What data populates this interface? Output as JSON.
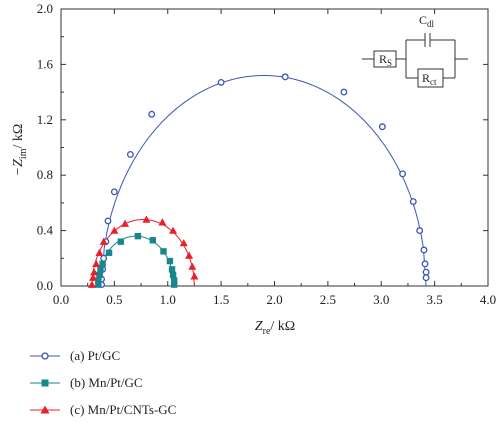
{
  "chart_data": {
    "type": "scatter",
    "x_axis": {
      "label_main": "Z",
      "label_sub": "re",
      "label_unit": "/ kΩ",
      "range": [
        0.0,
        4.0
      ],
      "ticks": [
        "0.0",
        "0.5",
        "1.0",
        "1.5",
        "2.0",
        "2.5",
        "3.0",
        "3.5",
        "4.0"
      ]
    },
    "y_axis": {
      "label_main": "−Z",
      "label_sub": "im",
      "label_unit": "/ kΩ",
      "range": [
        0.0,
        2.0
      ],
      "ticks": [
        "0.0",
        "0.4",
        "0.8",
        "1.2",
        "1.6",
        "2.0"
      ]
    },
    "grid": false,
    "legend_position": "bottom",
    "series": [
      {
        "name": "(a) Pt/GC",
        "color": "#3b55b5",
        "marker": "open-circle",
        "center": 1.9,
        "radius": 1.52,
        "points": [
          [
            0.38,
            0.01
          ],
          [
            0.38,
            0.05
          ],
          [
            0.39,
            0.12
          ],
          [
            0.4,
            0.2
          ],
          [
            0.42,
            0.32
          ],
          [
            0.44,
            0.47
          ],
          [
            0.5,
            0.68
          ],
          [
            0.65,
            0.95
          ],
          [
            0.85,
            1.24
          ],
          [
            1.5,
            1.47
          ],
          [
            2.1,
            1.51
          ],
          [
            2.65,
            1.4
          ],
          [
            3.01,
            1.15
          ],
          [
            3.2,
            0.81
          ],
          [
            3.3,
            0.61
          ],
          [
            3.36,
            0.4
          ],
          [
            3.4,
            0.26
          ],
          [
            3.41,
            0.16
          ],
          [
            3.42,
            0.1
          ],
          [
            3.42,
            0.06
          ]
        ]
      },
      {
        "name": "(b) Mn/Pt/GC",
        "color": "#17868f",
        "marker": "filled-square",
        "center": 0.7,
        "radius": 0.36,
        "points": [
          [
            0.35,
            0.01
          ],
          [
            0.35,
            0.04
          ],
          [
            0.36,
            0.08
          ],
          [
            0.37,
            0.12
          ],
          [
            0.39,
            0.16
          ],
          [
            0.45,
            0.24
          ],
          [
            0.56,
            0.32
          ],
          [
            0.72,
            0.36
          ],
          [
            0.86,
            0.33
          ],
          [
            0.96,
            0.25
          ],
          [
            1.02,
            0.18
          ],
          [
            1.04,
            0.12
          ],
          [
            1.05,
            0.08
          ],
          [
            1.06,
            0.04
          ],
          [
            1.06,
            0.01
          ]
        ]
      },
      {
        "name": "(c) Mn/Pt/CNTs-GC",
        "color": "#e8202a",
        "marker": "filled-triangle",
        "center": 0.77,
        "radius": 0.48,
        "points": [
          [
            0.29,
            0.01
          ],
          [
            0.3,
            0.06
          ],
          [
            0.31,
            0.1
          ],
          [
            0.33,
            0.16
          ],
          [
            0.36,
            0.24
          ],
          [
            0.4,
            0.32
          ],
          [
            0.5,
            0.4
          ],
          [
            0.6,
            0.45
          ],
          [
            0.8,
            0.48
          ],
          [
            0.95,
            0.46
          ],
          [
            1.05,
            0.4
          ],
          [
            1.15,
            0.31
          ],
          [
            1.2,
            0.22
          ],
          [
            1.23,
            0.14
          ],
          [
            1.25,
            0.07
          ]
        ]
      }
    ],
    "circuit": {
      "r1_label_main": "R",
      "r1_label_sub": "S",
      "cap_label_main": "C",
      "cap_label_sub": "dl",
      "r2_label_main": "R",
      "r2_label_sub": "ct"
    }
  }
}
